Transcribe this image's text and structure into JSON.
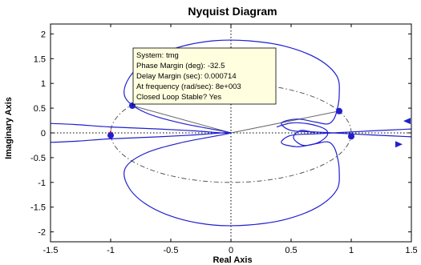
{
  "chart_data": {
    "type": "line",
    "title": "Nyquist Diagram",
    "xlabel": "Real Axis",
    "ylabel": "Imaginary Axis",
    "xlim": [
      -1.5,
      1.5
    ],
    "ylim": [
      -2.2,
      2.2
    ],
    "x_ticks": [
      -1.5,
      -1,
      -0.5,
      0,
      0.5,
      1,
      1.5
    ],
    "x_tick_labels": [
      "-1.5",
      "-1",
      "-0.5",
      "0",
      "0.5",
      "1",
      "1.5"
    ],
    "y_ticks": [
      2,
      1.5,
      1,
      0.5,
      0,
      -0.5,
      -1,
      -1.5,
      -2
    ],
    "y_tick_labels": [
      "2",
      "1.5",
      "1",
      "0.5",
      "0",
      "-0.5",
      "-1",
      "-1.5",
      "-2"
    ],
    "grid": false,
    "colors": {
      "curve": "#1f1fd0",
      "axes": "#000000",
      "unit_circle": "#555555",
      "critical_point": "#ff0000",
      "tooltip_bg": "#ffffe0"
    },
    "curve_upper": [
      [
        -1.6,
        0.2
      ],
      [
        -1.3,
        0.17
      ],
      [
        -1.0,
        0.12
      ],
      [
        -0.6,
        0.08
      ],
      [
        -0.3,
        0.04
      ],
      [
        0,
        0
      ],
      [
        -0.42,
        0.2
      ],
      [
        -0.72,
        0.42
      ],
      [
        -0.88,
        0.72
      ],
      [
        -0.85,
        1.1
      ],
      [
        -0.7,
        1.45
      ],
      [
        -0.45,
        1.72
      ],
      [
        -0.15,
        1.86
      ],
      [
        0.15,
        1.86
      ],
      [
        0.45,
        1.75
      ],
      [
        0.72,
        1.5
      ],
      [
        0.88,
        1.15
      ],
      [
        0.9,
        0.75
      ],
      [
        0.88,
        0.44
      ],
      [
        0.85,
        0.26
      ],
      [
        0.8,
        0.18
      ],
      [
        0.7,
        0.22
      ],
      [
        0.55,
        0.28
      ],
      [
        0.42,
        0.2
      ],
      [
        0.5,
        0.05
      ],
      [
        0.7,
        0.02
      ],
      [
        0.85,
        0.0
      ],
      [
        1.0,
        -0.02
      ],
      [
        1.25,
        -0.05
      ],
      [
        1.5,
        -0.08
      ]
    ],
    "curve_lower": [
      [
        -1.6,
        -0.2
      ],
      [
        -1.3,
        -0.17
      ],
      [
        -1.0,
        -0.12
      ],
      [
        -0.6,
        -0.08
      ],
      [
        -0.3,
        -0.04
      ],
      [
        0,
        0
      ],
      [
        -0.42,
        -0.2
      ],
      [
        -0.72,
        -0.42
      ],
      [
        -0.88,
        -0.72
      ],
      [
        -0.85,
        -1.1
      ],
      [
        -0.7,
        -1.45
      ],
      [
        -0.45,
        -1.72
      ],
      [
        -0.15,
        -1.86
      ],
      [
        0.15,
        -1.86
      ],
      [
        0.45,
        -1.75
      ],
      [
        0.72,
        -1.5
      ],
      [
        0.88,
        -1.15
      ],
      [
        0.9,
        -0.75
      ],
      [
        0.88,
        -0.44
      ],
      [
        0.85,
        -0.26
      ],
      [
        0.8,
        -0.18
      ],
      [
        0.7,
        -0.22
      ],
      [
        0.55,
        -0.28
      ],
      [
        0.42,
        -0.2
      ],
      [
        0.5,
        -0.05
      ],
      [
        0.7,
        -0.02
      ],
      [
        0.85,
        0.0
      ],
      [
        1.0,
        0.02
      ],
      [
        1.25,
        0.05
      ],
      [
        1.5,
        0.08
      ]
    ],
    "inner_loop": [
      [
        0.38,
        0.12
      ],
      [
        0.5,
        0.2
      ],
      [
        0.65,
        0.18
      ],
      [
        0.78,
        0.08
      ],
      [
        0.8,
        -0.05
      ],
      [
        0.72,
        -0.2
      ],
      [
        0.6,
        -0.25
      ],
      [
        0.52,
        -0.1
      ],
      [
        0.58,
        0.05
      ],
      [
        0.7,
        0.0
      ]
    ],
    "markers": [
      {
        "x": -0.82,
        "y": 0.55
      },
      {
        "x": -1.0,
        "y": -0.05
      },
      {
        "x": 0.9,
        "y": 0.44
      },
      {
        "x": 1.0,
        "y": -0.07
      }
    ],
    "critical_point": {
      "x": -1,
      "y": 0
    },
    "arrows": [
      {
        "x": 1.48,
        "y": 0.24,
        "dir": "left"
      },
      {
        "x": 1.38,
        "y": -0.23,
        "dir": "right"
      }
    ],
    "phase_lines": [
      {
        "from": [
          -0.82,
          0.55
        ],
        "to": [
          0,
          0
        ]
      },
      {
        "from": [
          0,
          0
        ],
        "to": [
          0.9,
          0.44
        ]
      }
    ],
    "datatip": {
      "anchor": {
        "x": -0.82,
        "y": 0.55
      },
      "lines": [
        "System: tmg",
        "Phase Margin (deg): -32.5",
        "Delay Margin (sec): 0.000714",
        "At frequency (rad/sec): 8e+003",
        "Closed Loop Stable? Yes"
      ]
    }
  }
}
